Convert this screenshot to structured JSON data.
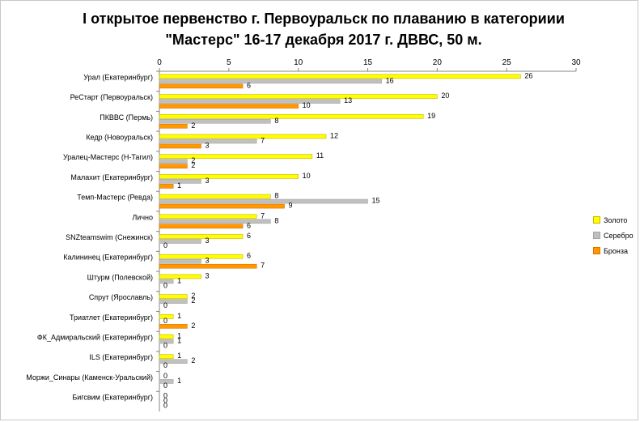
{
  "chart_data": {
    "type": "bar",
    "orientation": "horizontal",
    "title_lines": [
      "I открытое первенство г. Первоуральск по плаванию в категориии",
      "\"Мастерс\" 16-17 декабря 2017 г. ДВВС, 50 м."
    ],
    "categories": [
      "Урал (Екатеринбург)",
      "РеСтарт (Первоуральск)",
      "ПКВВС (Пермь)",
      "Кедр (Новоуральск)",
      "Уралец-Мастерс (Н-Тагил)",
      "Малахит (Екатеринбург)",
      "Темп-Мастерс (Ревда)",
      "Лично",
      "SNZteamswim (Снежинск)",
      "Калининец (Екатеринбург)",
      "Штурм (Полевской)",
      "Спрут (Ярославль)",
      "Триатлет (Екатеринбург)",
      "ФК_Адмиральский (Екатеринбург)",
      "ILS (Екатеринбург)",
      "Моржи_Синары (Каменск-Уральский)",
      "Бигсвим (Екатеринбург)"
    ],
    "series": [
      {
        "name": "Золото",
        "color": "#FFFF00",
        "stroke": "#C8B400",
        "values": [
          26,
          20,
          19,
          12,
          11,
          10,
          8,
          7,
          6,
          6,
          3,
          2,
          1,
          1,
          1,
          0,
          0
        ]
      },
      {
        "name": "Серебро",
        "color": "#C0C0C0",
        "stroke": "#A6A6A6",
        "values": [
          16,
          13,
          8,
          7,
          2,
          3,
          15,
          8,
          3,
          3,
          1,
          2,
          0,
          1,
          2,
          1,
          0
        ]
      },
      {
        "name": "Бронза",
        "color": "#FF9900",
        "stroke": "#E07000",
        "values": [
          6,
          10,
          2,
          3,
          2,
          1,
          9,
          6,
          0,
          7,
          0,
          0,
          2,
          0,
          0,
          0,
          0
        ]
      }
    ],
    "xlim": [
      0,
      30
    ],
    "xticks": [
      0,
      5,
      10,
      15,
      20,
      25,
      30
    ],
    "x_axis_position": "top",
    "grid": false,
    "data_labels": true,
    "legend_position": "right"
  }
}
